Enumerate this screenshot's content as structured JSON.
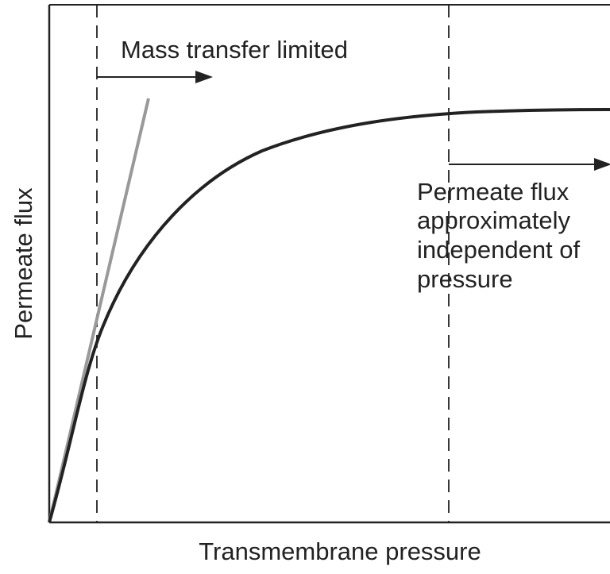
{
  "diagram": {
    "y_axis_label": "Permeate flux",
    "x_axis_label": "Transmembrane pressure",
    "left_annotation": "Mass transfer limited",
    "right_annotation": [
      "Permeate flux",
      "approximately",
      "independent of",
      "pressure"
    ]
  }
}
